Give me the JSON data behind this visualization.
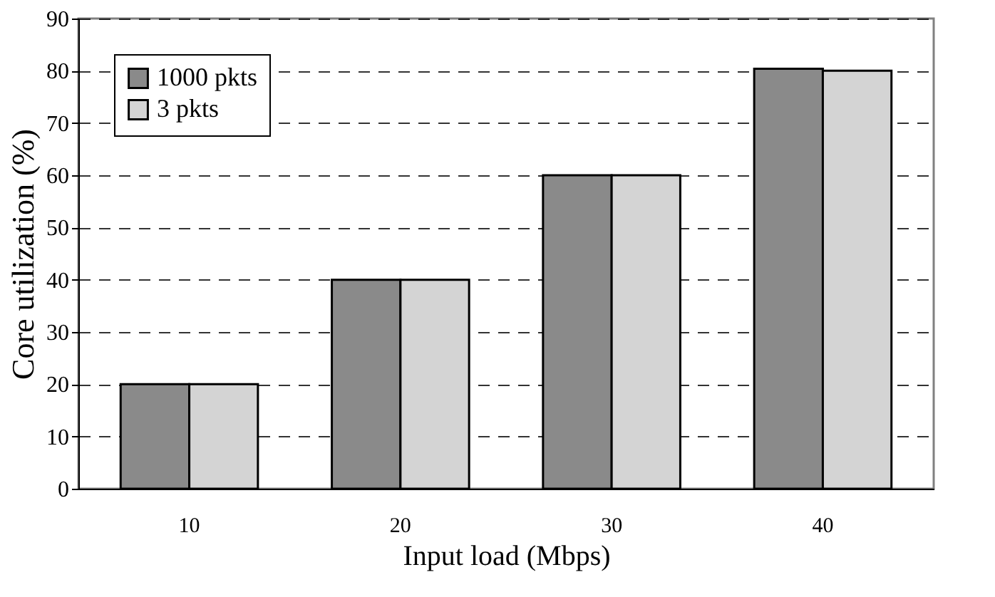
{
  "chart_data": {
    "type": "bar",
    "xlabel": "Input load (Mbps)",
    "ylabel": "Core utilization (%)",
    "categories": [
      "10",
      "20",
      "30",
      "40"
    ],
    "series": [
      {
        "name": "1000 pkts",
        "color": "#8a8a8a",
        "values": [
          20,
          40,
          60,
          80.4
        ]
      },
      {
        "name": "3 pkts",
        "color": "#d4d4d4",
        "values": [
          20,
          40,
          60,
          80
        ]
      }
    ],
    "ylim": [
      0,
      90
    ],
    "yticks": [
      0,
      10,
      20,
      30,
      40,
      50,
      60,
      70,
      80,
      90
    ],
    "grid": "y",
    "legend": "top left"
  }
}
